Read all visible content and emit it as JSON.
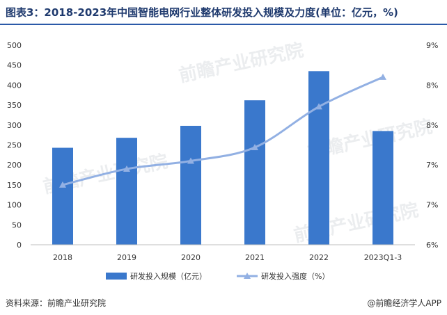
{
  "title": "图表3：2018-2023年中国智能电网行业整体研发投入规模及力度(单位：亿元，%)",
  "source": "资料来源：前瞻产业研究院",
  "credit": "@前瞻经济学人APP",
  "watermark": "前瞻产业研究院",
  "colors": {
    "bar": "#3a78cc",
    "line": "#92b0e3",
    "title": "#1f3a6e",
    "rule": "#2b5aa8"
  },
  "chart_data": {
    "type": "bar",
    "categories": [
      "2018",
      "2019",
      "2020",
      "2021",
      "2022",
      "2023Q1-3"
    ],
    "series": [
      {
        "name": "研发投入规模（亿元）",
        "type": "bar",
        "axis": "left",
        "values": [
          243,
          268,
          298,
          362,
          435,
          285
        ]
      },
      {
        "name": "研发投入强度（%）",
        "type": "line",
        "axis": "right",
        "marker": "triangle",
        "values": [
          6.75,
          6.95,
          7.05,
          7.22,
          7.73,
          8.1
        ]
      }
    ],
    "y_left": {
      "min": 0,
      "max": 500,
      "step": 50,
      "ticks": [
        "0",
        "50",
        "100",
        "150",
        "200",
        "250",
        "300",
        "350",
        "400",
        "450",
        "500"
      ]
    },
    "y_right": {
      "min": 6,
      "max": 8.5,
      "ticks": [
        "6%",
        "7%",
        "7%",
        "8%",
        "8%",
        "9%"
      ]
    },
    "legend": "bottom",
    "grid": false
  }
}
